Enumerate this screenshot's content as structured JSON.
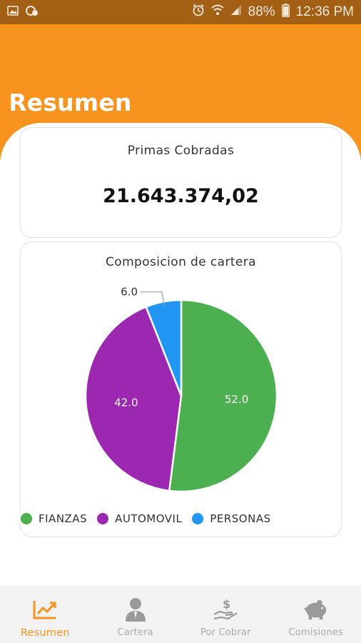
{
  "status_bar": {
    "battery": "88%",
    "time": "12:36 PM"
  },
  "header": {
    "title": "Resumen"
  },
  "primas_card": {
    "title": "Primas Cobradas",
    "value": "21.643.374,02"
  },
  "cartera_card": {
    "title": "Composicion de cartera"
  },
  "chart_data": {
    "type": "pie",
    "title": "Composicion de cartera",
    "slices": [
      {
        "label": "FIANZAS",
        "value": 52.0,
        "value_label": "52.0",
        "color": "#4caf50"
      },
      {
        "label": "AUTOMOVIL",
        "value": 42.0,
        "value_label": "42.0",
        "color": "#9c27b0"
      },
      {
        "label": "PERSONAS",
        "value": 6.0,
        "value_label": "6.0",
        "color": "#2196f3"
      }
    ],
    "legend_position": "bottom-left"
  },
  "bottom_nav": {
    "items": [
      {
        "label": "Resumen",
        "icon": "chart-line-icon",
        "active": true
      },
      {
        "label": "Cartera",
        "icon": "person-icon",
        "active": false
      },
      {
        "label": "Por Cobrar",
        "icon": "hand-dollar-icon",
        "active": false
      },
      {
        "label": "Comisiones",
        "icon": "piggy-bank-icon",
        "active": false
      }
    ]
  },
  "colors": {
    "accent": "#f7931e",
    "status_bar": "#a35f14",
    "inactive_nav": "#a9a9a9"
  }
}
